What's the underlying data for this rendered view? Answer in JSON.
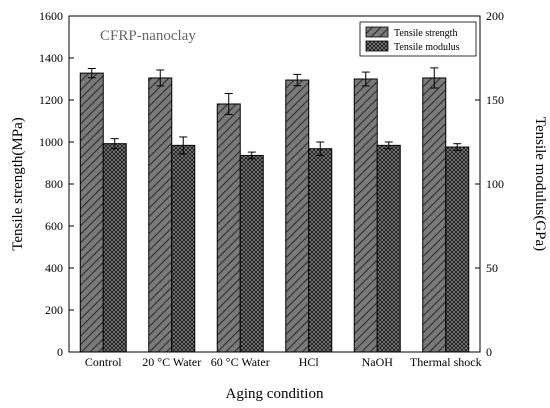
{
  "chart_data": {
    "type": "bar",
    "title": "CFRP-nanoclay",
    "xlabel": "Aging condition",
    "ylabel": "Tensile strength(MPa)",
    "y2label": "Tensile modulus(GPa)",
    "categories": [
      "Control",
      "20 °C Water",
      "60 °C Water",
      "HCl",
      "NaOH",
      "Thermal shock"
    ],
    "ylim": [
      0,
      1600
    ],
    "y2lim": [
      0,
      200
    ],
    "yticks": [
      0,
      200,
      400,
      600,
      800,
      1000,
      1200,
      1400,
      1600
    ],
    "y2ticks": [
      0,
      50,
      100,
      150,
      200
    ],
    "legend_position": "top-right",
    "grid": false,
    "series": [
      {
        "name": "Tensile strength",
        "axis": "left",
        "pattern": "diagonal-hatch",
        "color": "#6b6b6b",
        "values": [
          1328,
          1305,
          1181,
          1295,
          1300,
          1305
        ],
        "errors": [
          22,
          38,
          50,
          27,
          33,
          48
        ]
      },
      {
        "name": "Tensile modulus",
        "axis": "right",
        "pattern": "cross-hatch",
        "color": "#4a4a4a",
        "values": [
          124,
          123,
          117,
          121,
          123,
          122
        ],
        "errors": [
          3,
          5,
          2,
          4,
          2,
          2
        ]
      }
    ]
  }
}
